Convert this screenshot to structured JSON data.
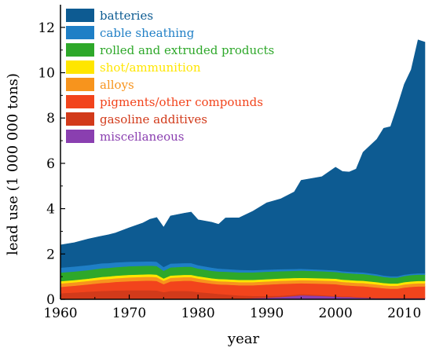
{
  "chart_data": {
    "type": "area",
    "stacked": true,
    "title": "",
    "xlabel": "year",
    "ylabel": "lead use (1 000 000 tons)",
    "xlim": [
      1960,
      2013
    ],
    "ylim": [
      0,
      13
    ],
    "xticks": [
      1960,
      1970,
      1980,
      1990,
      2000,
      2010
    ],
    "yticks": [
      0,
      2,
      4,
      6,
      8,
      10,
      12
    ],
    "grid": false,
    "legend_position": "top-left",
    "x": [
      1960,
      1962,
      1964,
      1966,
      1967,
      1968,
      1970,
      1972,
      1973,
      1974,
      1975,
      1976,
      1978,
      1979,
      1980,
      1982,
      1983,
      1984,
      1986,
      1988,
      1990,
      1992,
      1994,
      1995,
      1998,
      2000,
      2001,
      2002,
      2003,
      2004,
      2006,
      2007,
      2008,
      2009,
      2010,
      2011,
      2012,
      2013
    ],
    "series": [
      {
        "name": "miscellaneous",
        "color": "#8a3fb0",
        "values": [
          0.02,
          0.02,
          0.02,
          0.02,
          0.02,
          0.02,
          0.02,
          0.02,
          0.02,
          0.02,
          0.02,
          0.02,
          0.02,
          0.02,
          0.02,
          0.02,
          0.02,
          0.02,
          0.02,
          0.05,
          0.07,
          0.1,
          0.15,
          0.18,
          0.15,
          0.12,
          0.1,
          0.1,
          0.08,
          0.07,
          0.05,
          0.05,
          0.05,
          0.05,
          0.05,
          0.05,
          0.05,
          0.05
        ]
      },
      {
        "name": "gasoline additives",
        "color": "#d23a1a",
        "values": [
          0.25,
          0.28,
          0.32,
          0.35,
          0.36,
          0.37,
          0.38,
          0.38,
          0.38,
          0.37,
          0.3,
          0.35,
          0.35,
          0.34,
          0.3,
          0.25,
          0.22,
          0.2,
          0.15,
          0.1,
          0.08,
          0.06,
          0.05,
          0.05,
          0.04,
          0.03,
          0.03,
          0.03,
          0.03,
          0.03,
          0.02,
          0.02,
          0.02,
          0.02,
          0.02,
          0.02,
          0.02,
          0.02
        ]
      },
      {
        "name": "pigments/other compounds",
        "color": "#f2441c",
        "values": [
          0.28,
          0.3,
          0.32,
          0.35,
          0.36,
          0.38,
          0.4,
          0.42,
          0.43,
          0.42,
          0.35,
          0.42,
          0.45,
          0.46,
          0.45,
          0.42,
          0.42,
          0.43,
          0.45,
          0.47,
          0.5,
          0.52,
          0.5,
          0.48,
          0.5,
          0.52,
          0.5,
          0.48,
          0.48,
          0.48,
          0.45,
          0.42,
          0.4,
          0.4,
          0.45,
          0.48,
          0.5,
          0.5
        ]
      },
      {
        "name": "alloys",
        "color": "#f7941d",
        "values": [
          0.15,
          0.15,
          0.15,
          0.16,
          0.16,
          0.16,
          0.17,
          0.17,
          0.17,
          0.17,
          0.15,
          0.16,
          0.16,
          0.16,
          0.15,
          0.14,
          0.14,
          0.14,
          0.14,
          0.14,
          0.14,
          0.14,
          0.14,
          0.14,
          0.14,
          0.14,
          0.14,
          0.14,
          0.14,
          0.14,
          0.14,
          0.13,
          0.13,
          0.13,
          0.14,
          0.14,
          0.14,
          0.14
        ]
      },
      {
        "name": "shot/ammunition",
        "color": "#ffe600",
        "values": [
          0.1,
          0.1,
          0.1,
          0.11,
          0.11,
          0.11,
          0.11,
          0.11,
          0.11,
          0.11,
          0.1,
          0.1,
          0.1,
          0.1,
          0.1,
          0.1,
          0.1,
          0.1,
          0.1,
          0.1,
          0.1,
          0.1,
          0.1,
          0.1,
          0.1,
          0.1,
          0.1,
          0.1,
          0.1,
          0.1,
          0.1,
          0.1,
          0.1,
          0.1,
          0.1,
          0.1,
          0.1,
          0.1
        ]
      },
      {
        "name": "rolled and extruded products",
        "color": "#2ea82a",
        "values": [
          0.38,
          0.38,
          0.38,
          0.38,
          0.38,
          0.38,
          0.38,
          0.38,
          0.38,
          0.38,
          0.34,
          0.36,
          0.36,
          0.36,
          0.34,
          0.33,
          0.33,
          0.33,
          0.33,
          0.33,
          0.33,
          0.32,
          0.32,
          0.32,
          0.31,
          0.3,
          0.3,
          0.3,
          0.3,
          0.3,
          0.28,
          0.27,
          0.26,
          0.26,
          0.27,
          0.28,
          0.28,
          0.28
        ]
      },
      {
        "name": "cable sheathing",
        "color": "#1f7fc6",
        "values": [
          0.22,
          0.22,
          0.22,
          0.22,
          0.21,
          0.21,
          0.2,
          0.19,
          0.19,
          0.19,
          0.17,
          0.17,
          0.16,
          0.16,
          0.15,
          0.14,
          0.13,
          0.12,
          0.11,
          0.1,
          0.09,
          0.09,
          0.08,
          0.08,
          0.07,
          0.07,
          0.07,
          0.07,
          0.07,
          0.07,
          0.07,
          0.06,
          0.06,
          0.06,
          0.06,
          0.06,
          0.06,
          0.06
        ]
      },
      {
        "name": "batteries",
        "color": "#0d5b92",
        "values": [
          1.0,
          1.05,
          1.15,
          1.2,
          1.25,
          1.3,
          1.5,
          1.7,
          1.85,
          1.95,
          1.75,
          2.1,
          2.2,
          2.25,
          2.0,
          2.0,
          1.95,
          2.25,
          2.3,
          2.6,
          2.95,
          3.1,
          3.4,
          3.9,
          4.1,
          4.55,
          4.4,
          4.4,
          4.55,
          5.3,
          5.95,
          6.5,
          6.6,
          7.5,
          8.4,
          9.0,
          10.3,
          10.2
        ]
      }
    ]
  }
}
